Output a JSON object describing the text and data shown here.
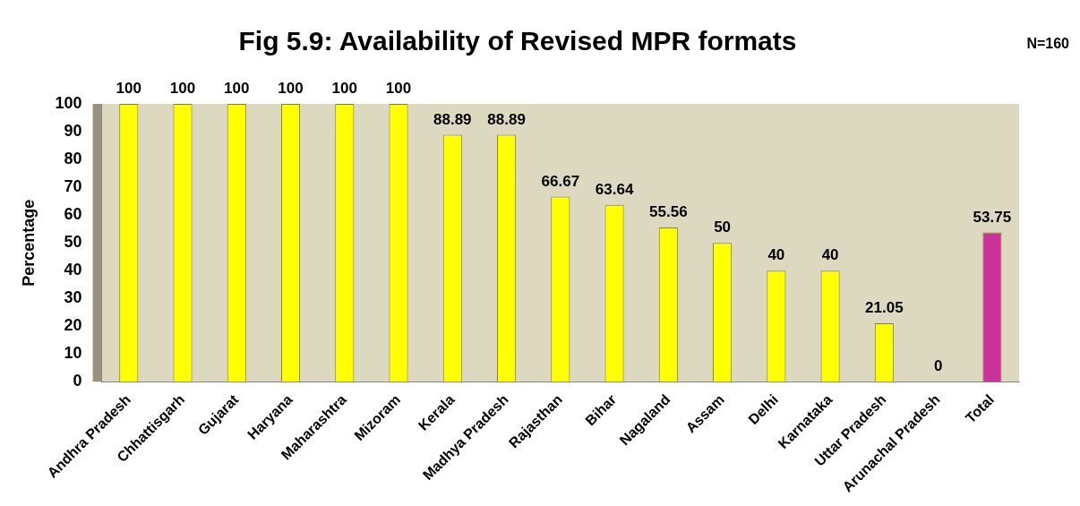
{
  "chart_data": {
    "type": "bar",
    "title": "Fig 5.9: Availability of Revised MPR formats",
    "ylabel": "Percentage",
    "annotations": [
      "N=160"
    ],
    "categories": [
      "Andhra Pradesh",
      "Chhattisgarh",
      "Gujarat",
      "Haryana",
      "Maharashtra",
      "Mizoram",
      "Kerala",
      "Madhya Pradesh",
      "Rajasthan",
      "Bihar",
      "Nagaland",
      "Assam",
      "Delhi",
      "Karnataka",
      "Uttar Pradesh",
      "Arunachal Pradesh",
      "Total"
    ],
    "values": [
      100,
      100,
      100,
      100,
      100,
      100,
      88.89,
      88.89,
      66.67,
      63.64,
      55.56,
      50,
      40,
      40,
      21.05,
      0,
      53.75
    ],
    "colors": [
      "#ffff00",
      "#ffff00",
      "#ffff00",
      "#ffff00",
      "#ffff00",
      "#ffff00",
      "#ffff00",
      "#ffff00",
      "#ffff00",
      "#ffff00",
      "#ffff00",
      "#ffff00",
      "#ffff00",
      "#ffff00",
      "#ffff00",
      "#ffff00",
      "#cc3399"
    ],
    "ylim": [
      0,
      100
    ],
    "yticks": [
      0,
      10,
      20,
      30,
      40,
      50,
      60,
      70,
      80,
      90,
      100
    ],
    "data_labels": true
  }
}
